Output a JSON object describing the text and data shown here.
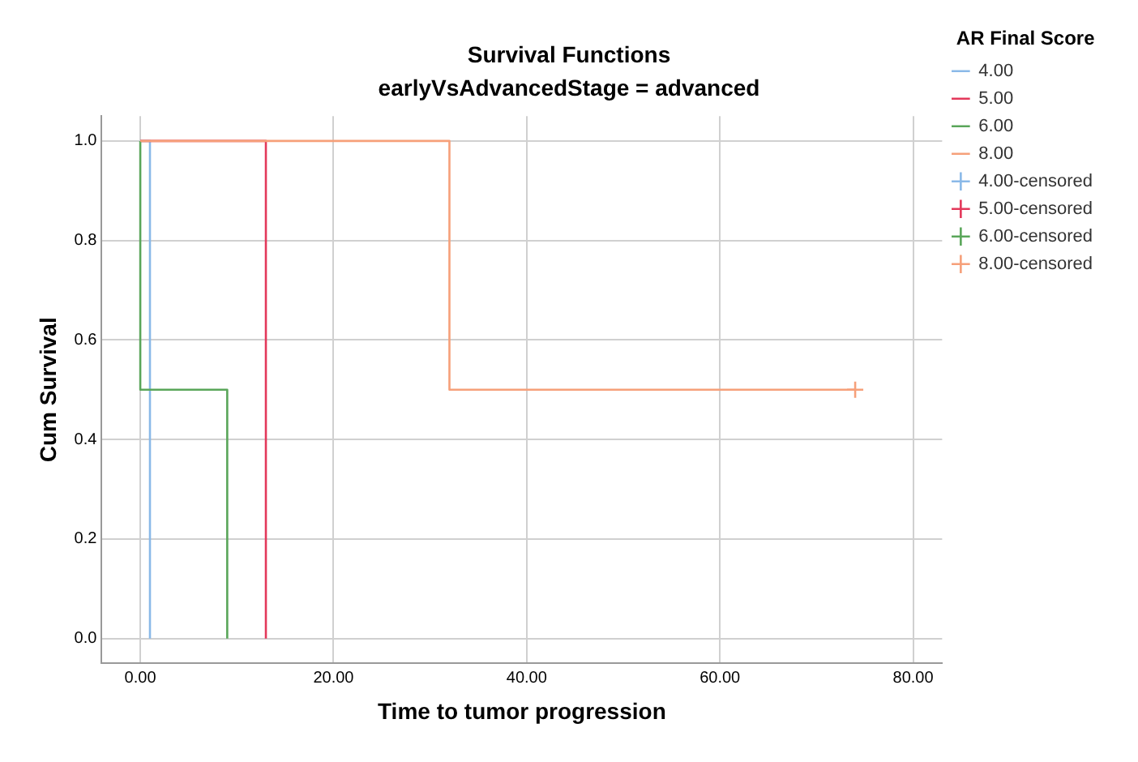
{
  "chart_data": {
    "type": "step",
    "title": "Survival Functions",
    "subtitle": "earlyVsAdvancedStage = advanced",
    "xlabel": "Time to tumor progression",
    "ylabel": "Cum Survival",
    "legend_title": "AR Final Score",
    "legend": "right",
    "grid": true,
    "xlim": [
      -4,
      83
    ],
    "xticks": [
      {
        "value": 0,
        "label": "0.00"
      },
      {
        "value": 20,
        "label": "20.00"
      },
      {
        "value": 40,
        "label": "40.00"
      },
      {
        "value": 60,
        "label": "60.00"
      },
      {
        "value": 80,
        "label": "80.00"
      }
    ],
    "ylim": [
      -0.05,
      1.05
    ],
    "yticks": [
      {
        "value": 0,
        "label": "0.0"
      },
      {
        "value": 0.2,
        "label": "0.2"
      },
      {
        "value": 0.4,
        "label": "0.4"
      },
      {
        "value": 0.6,
        "label": "0.6"
      },
      {
        "value": 0.8,
        "label": "0.8"
      },
      {
        "value": 1,
        "label": "1.0"
      }
    ],
    "series": [
      {
        "name": "4.00",
        "color": "#8ab9e8",
        "x": [
          0,
          1
        ],
        "values": [
          1,
          0
        ]
      },
      {
        "name": "5.00",
        "color": "#e3385a",
        "x": [
          0,
          13
        ],
        "values": [
          1,
          0
        ]
      },
      {
        "name": "6.00",
        "color": "#5aa65a",
        "x": [
          0,
          0,
          9
        ],
        "values": [
          1,
          0.5,
          0
        ]
      },
      {
        "name": "8.00",
        "color": "#f6a07a",
        "x": [
          0,
          32,
          74
        ],
        "values": [
          1,
          0.5,
          0.5
        ]
      },
      {
        "name": "4.00-censored",
        "type": "scatter",
        "marker": "cross",
        "color": "#8ab9e8"
      },
      {
        "name": "5.00-censored",
        "type": "scatter",
        "marker": "cross",
        "color": "#e3385a"
      },
      {
        "name": "6.00-censored",
        "type": "scatter",
        "marker": "cross",
        "color": "#5aa65a"
      },
      {
        "name": "8.00-censored",
        "type": "scatter",
        "marker": "cross",
        "color": "#f6a07a",
        "x": [
          74
        ],
        "values": [
          0.5
        ]
      }
    ]
  }
}
